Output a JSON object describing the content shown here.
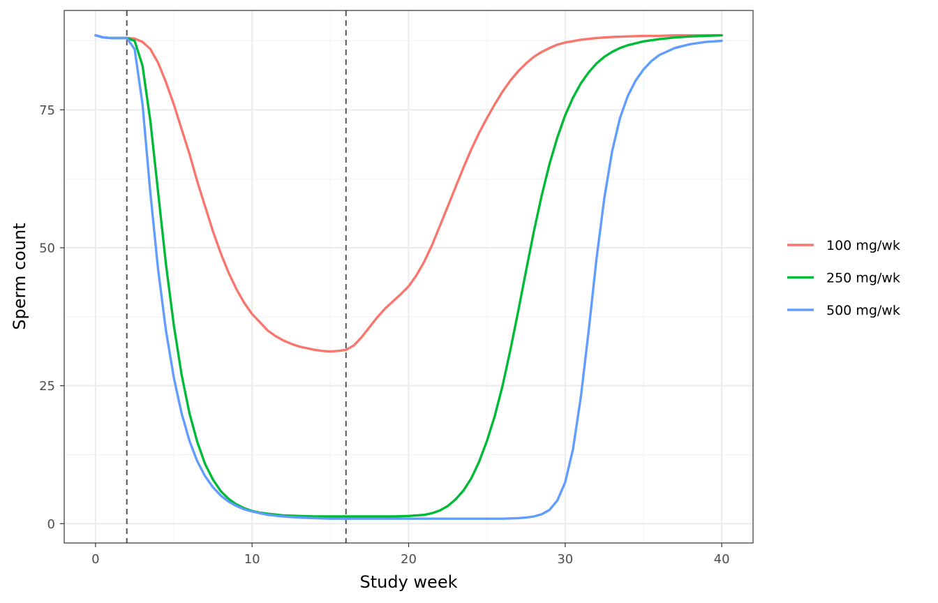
{
  "chart_data": {
    "type": "line",
    "title": "",
    "xlabel": "Study week",
    "ylabel": "Sperm count",
    "xlim": [
      -2,
      42
    ],
    "ylim": [
      -3.5,
      93
    ],
    "x_ticks": [
      0,
      10,
      20,
      30,
      40
    ],
    "y_ticks": [
      0,
      25,
      50,
      75
    ],
    "x_tick_labels": [
      "0",
      "10",
      "20",
      "30",
      "40"
    ],
    "y_tick_labels": [
      "0",
      "25",
      "50",
      "75"
    ],
    "grid": true,
    "legend_position": "right",
    "reference_lines": {
      "orientation": "vertical",
      "style": "dashed",
      "color": "#555555",
      "x": [
        2,
        16
      ]
    },
    "series": [
      {
        "name": "100 mg/wk",
        "color": "#F8766D",
        "points": [
          [
            0,
            88.5
          ],
          [
            0.5,
            88.1
          ],
          [
            1,
            88.0
          ],
          [
            2,
            88.0
          ],
          [
            2.5,
            87.9
          ],
          [
            3,
            87.3
          ],
          [
            3.5,
            86
          ],
          [
            4,
            83.5
          ],
          [
            4.5,
            80
          ],
          [
            5,
            76
          ],
          [
            5.5,
            71.5
          ],
          [
            6,
            67
          ],
          [
            6.5,
            62
          ],
          [
            7,
            57.5
          ],
          [
            7.5,
            53
          ],
          [
            8,
            49
          ],
          [
            8.5,
            45.5
          ],
          [
            9,
            42.5
          ],
          [
            9.5,
            40
          ],
          [
            10,
            38
          ],
          [
            10.5,
            36.5
          ],
          [
            11,
            35
          ],
          [
            11.5,
            34
          ],
          [
            12,
            33.2
          ],
          [
            12.5,
            32.6
          ],
          [
            13,
            32.1
          ],
          [
            13.5,
            31.8
          ],
          [
            14,
            31.5
          ],
          [
            14.5,
            31.3
          ],
          [
            15,
            31.2
          ],
          [
            15.5,
            31.3
          ],
          [
            16,
            31.5
          ],
          [
            16.5,
            32.3
          ],
          [
            17,
            33.8
          ],
          [
            17.5,
            35.6
          ],
          [
            18,
            37.4
          ],
          [
            18.5,
            39
          ],
          [
            19,
            40.3
          ],
          [
            19.5,
            41.6
          ],
          [
            20,
            43
          ],
          [
            20.5,
            45
          ],
          [
            21,
            47.5
          ],
          [
            21.5,
            50.5
          ],
          [
            22,
            54
          ],
          [
            22.5,
            57.5
          ],
          [
            23,
            61
          ],
          [
            23.5,
            64.5
          ],
          [
            24,
            67.8
          ],
          [
            24.5,
            70.8
          ],
          [
            25,
            73.5
          ],
          [
            25.5,
            76
          ],
          [
            26,
            78.3
          ],
          [
            26.5,
            80.3
          ],
          [
            27,
            82
          ],
          [
            27.5,
            83.4
          ],
          [
            28,
            84.6
          ],
          [
            28.5,
            85.5
          ],
          [
            29,
            86.2
          ],
          [
            29.5,
            86.8
          ],
          [
            30,
            87.2
          ],
          [
            31,
            87.7
          ],
          [
            32,
            88
          ],
          [
            33,
            88.2
          ],
          [
            34,
            88.3
          ],
          [
            35,
            88.4
          ],
          [
            36,
            88.4
          ],
          [
            37,
            88.5
          ],
          [
            38,
            88.5
          ],
          [
            39,
            88.5
          ],
          [
            40,
            88.5
          ]
        ]
      },
      {
        "name": "250 mg/wk",
        "color": "#00BA38",
        "points": [
          [
            0,
            88.5
          ],
          [
            0.5,
            88.1
          ],
          [
            1,
            88.0
          ],
          [
            2,
            88.0
          ],
          [
            2.5,
            87.5
          ],
          [
            3,
            83
          ],
          [
            3.5,
            73
          ],
          [
            4,
            60
          ],
          [
            4.5,
            47
          ],
          [
            5,
            36
          ],
          [
            5.5,
            27
          ],
          [
            6,
            20
          ],
          [
            6.5,
            14.8
          ],
          [
            7,
            10.8
          ],
          [
            7.5,
            8
          ],
          [
            8,
            5.9
          ],
          [
            8.5,
            4.5
          ],
          [
            9,
            3.5
          ],
          [
            9.5,
            2.8
          ],
          [
            10,
            2.3
          ],
          [
            10.5,
            2
          ],
          [
            11,
            1.8
          ],
          [
            12,
            1.5
          ],
          [
            13,
            1.4
          ],
          [
            14,
            1.3
          ],
          [
            15,
            1.3
          ],
          [
            16,
            1.3
          ],
          [
            17,
            1.3
          ],
          [
            18,
            1.3
          ],
          [
            19,
            1.3
          ],
          [
            20,
            1.4
          ],
          [
            21,
            1.6
          ],
          [
            21.5,
            1.9
          ],
          [
            22,
            2.4
          ],
          [
            22.5,
            3.2
          ],
          [
            23,
            4.4
          ],
          [
            23.5,
            6
          ],
          [
            24,
            8.2
          ],
          [
            24.5,
            11.2
          ],
          [
            25,
            15
          ],
          [
            25.5,
            19.5
          ],
          [
            26,
            25
          ],
          [
            26.5,
            31.5
          ],
          [
            27,
            38.5
          ],
          [
            27.5,
            45.8
          ],
          [
            28,
            53
          ],
          [
            28.5,
            59.5
          ],
          [
            29,
            65.2
          ],
          [
            29.5,
            70
          ],
          [
            30,
            74
          ],
          [
            30.5,
            77.2
          ],
          [
            31,
            79.8
          ],
          [
            31.5,
            81.8
          ],
          [
            32,
            83.4
          ],
          [
            32.5,
            84.6
          ],
          [
            33,
            85.5
          ],
          [
            33.5,
            86.2
          ],
          [
            34,
            86.7
          ],
          [
            35,
            87.4
          ],
          [
            36,
            87.8
          ],
          [
            37,
            88.1
          ],
          [
            38,
            88.3
          ],
          [
            39,
            88.4
          ],
          [
            40,
            88.5
          ]
        ]
      },
      {
        "name": "500 mg/wk",
        "color": "#619CFF",
        "points": [
          [
            0,
            88.5
          ],
          [
            0.5,
            88.1
          ],
          [
            1,
            88.0
          ],
          [
            2,
            88.0
          ],
          [
            2.5,
            86
          ],
          [
            3,
            76
          ],
          [
            3.5,
            60
          ],
          [
            4,
            46
          ],
          [
            4.5,
            35
          ],
          [
            5,
            26.5
          ],
          [
            5.5,
            20
          ],
          [
            6,
            15
          ],
          [
            6.5,
            11.3
          ],
          [
            7,
            8.6
          ],
          [
            7.5,
            6.6
          ],
          [
            8,
            5.1
          ],
          [
            8.5,
            4
          ],
          [
            9,
            3.2
          ],
          [
            9.5,
            2.6
          ],
          [
            10,
            2.2
          ],
          [
            11,
            1.6
          ],
          [
            12,
            1.3
          ],
          [
            13,
            1.1
          ],
          [
            14,
            1
          ],
          [
            15,
            0.9
          ],
          [
            16,
            0.9
          ],
          [
            17,
            0.9
          ],
          [
            18,
            0.9
          ],
          [
            19,
            0.9
          ],
          [
            20,
            0.9
          ],
          [
            21,
            0.9
          ],
          [
            22,
            0.9
          ],
          [
            23,
            0.9
          ],
          [
            24,
            0.9
          ],
          [
            25,
            0.9
          ],
          [
            26,
            0.9
          ],
          [
            27,
            1
          ],
          [
            27.5,
            1.1
          ],
          [
            28,
            1.3
          ],
          [
            28.5,
            1.7
          ],
          [
            29,
            2.5
          ],
          [
            29.5,
            4.2
          ],
          [
            30,
            7.5
          ],
          [
            30.5,
            13.5
          ],
          [
            31,
            23
          ],
          [
            31.5,
            35
          ],
          [
            32,
            48
          ],
          [
            32.5,
            59
          ],
          [
            33,
            67.5
          ],
          [
            33.5,
            73.5
          ],
          [
            34,
            77.5
          ],
          [
            34.5,
            80.3
          ],
          [
            35,
            82.3
          ],
          [
            35.5,
            83.8
          ],
          [
            36,
            84.9
          ],
          [
            37,
            86.2
          ],
          [
            38,
            86.9
          ],
          [
            39,
            87.3
          ],
          [
            40,
            87.5
          ]
        ]
      }
    ]
  }
}
